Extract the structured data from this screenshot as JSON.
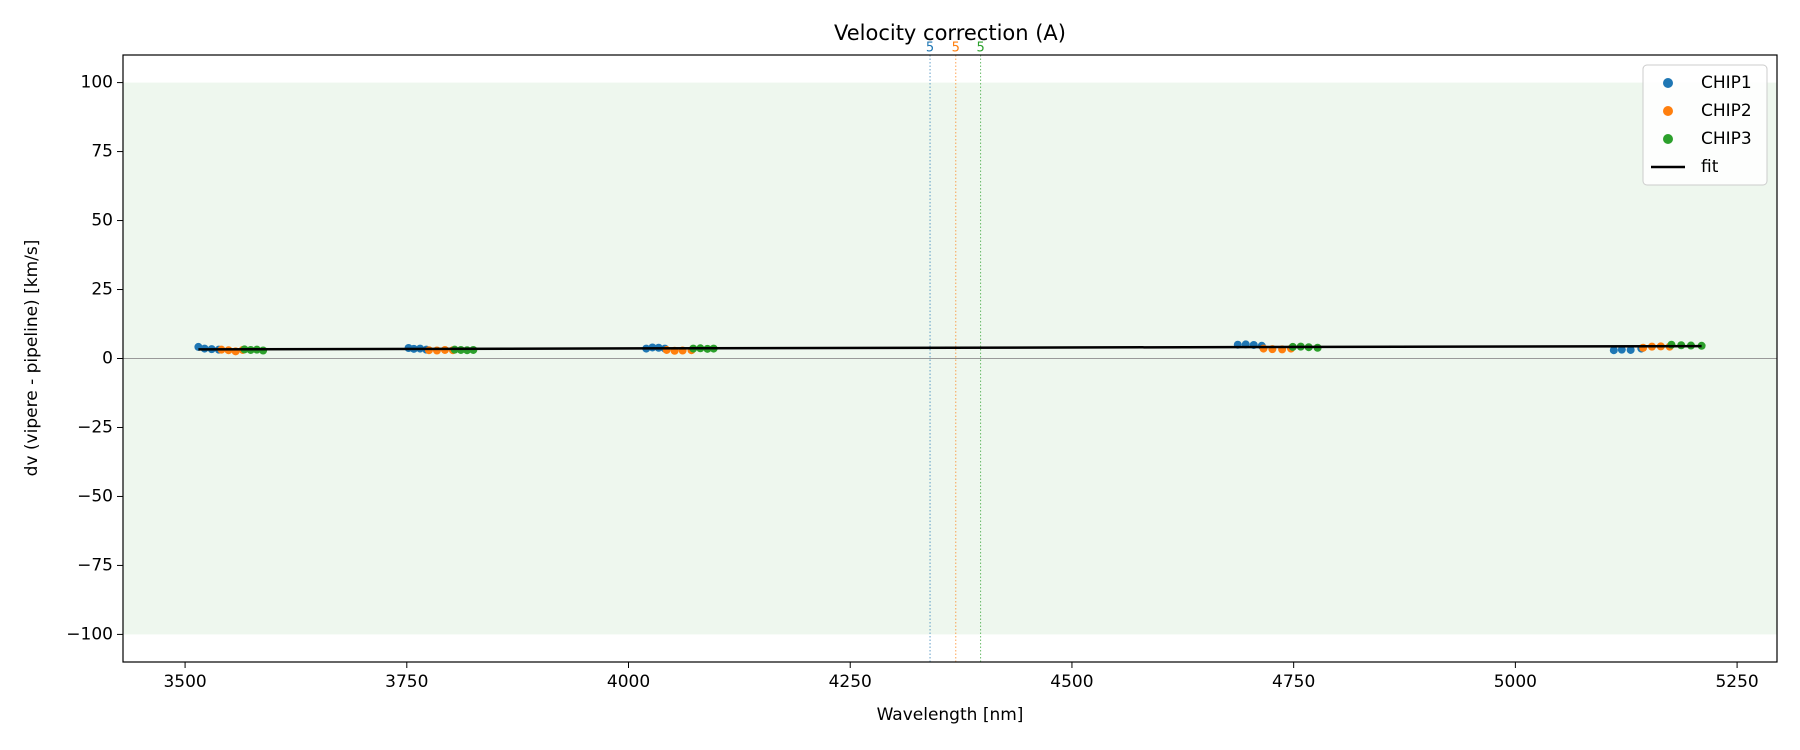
{
  "chart_data": {
    "type": "scatter",
    "title": "Velocity correction (A)",
    "x_label": "Wavelength [nm]",
    "y_label": "dv (vipere - pipeline) [km/s]",
    "xlim": [
      3430,
      5295
    ],
    "ylim": [
      -110,
      110
    ],
    "xticks": [
      3500,
      3750,
      4000,
      4250,
      4500,
      4750,
      5000,
      5250
    ],
    "yticks": [
      {
        "value": -100,
        "label": "−100"
      },
      {
        "value": -75,
        "label": "−75"
      },
      {
        "value": -50,
        "label": "−50"
      },
      {
        "value": -25,
        "label": "−25"
      },
      0,
      25,
      50,
      75,
      100
    ],
    "shade": {
      "ylim": [
        -100,
        100
      ],
      "color": "#eef7ee"
    },
    "hline": {
      "y": 0,
      "color": "#999999"
    },
    "legend": "upper right",
    "vlines": [
      {
        "x": 4340,
        "label": "5",
        "color": "#1f77b4"
      },
      {
        "x": 4369,
        "label": "5",
        "color": "#ff7f0e"
      },
      {
        "x": 4397,
        "label": "5",
        "color": "#2ca02c"
      }
    ],
    "series": [
      {
        "name": "CHIP1",
        "color": "#1f77b4",
        "x": [
          3515,
          3522,
          3530,
          3538,
          3752,
          3758,
          3765,
          3772,
          4020,
          4027,
          4034,
          4041,
          4687,
          4696,
          4705,
          4714,
          5111,
          5120,
          5130,
          5142
        ],
        "values": [
          4.2,
          3.6,
          3.4,
          3.2,
          3.8,
          3.5,
          3.6,
          3.2,
          3.6,
          4.0,
          3.9,
          3.6,
          5.0,
          5.1,
          4.9,
          4.6,
          3.0,
          3.2,
          3.1,
          3.6
        ]
      },
      {
        "name": "CHIP2",
        "color": "#ff7f0e",
        "x": [
          3541,
          3549,
          3557,
          3565,
          3775,
          3784,
          3793,
          3802,
          4043,
          4052,
          4061,
          4071,
          4716,
          4726,
          4737,
          4747,
          5144,
          5154,
          5164,
          5174
        ],
        "values": [
          3.2,
          3.0,
          2.6,
          3.1,
          3.0,
          2.9,
          3.1,
          3.0,
          3.1,
          2.8,
          2.9,
          3.0,
          3.6,
          3.4,
          3.3,
          3.6,
          3.9,
          4.3,
          4.4,
          4.3
        ]
      },
      {
        "name": "CHIP3",
        "color": "#2ca02c",
        "x": [
          3567,
          3574,
          3581,
          3588,
          3804,
          3811,
          3818,
          3825,
          4073,
          4081,
          4089,
          4096,
          4749,
          4758,
          4767,
          4777,
          5176,
          5187,
          5198,
          5210
        ],
        "values": [
          3.3,
          3.1,
          3.2,
          2.9,
          3.2,
          3.1,
          3.0,
          3.1,
          3.6,
          3.7,
          3.5,
          3.6,
          4.2,
          4.3,
          4.1,
          3.9,
          5.0,
          4.8,
          4.7,
          4.6
        ]
      },
      {
        "name": "fit",
        "color": "#000000",
        "line": true,
        "x": [
          3515,
          5210
        ],
        "values": [
          3.3,
          4.5
        ]
      }
    ]
  }
}
